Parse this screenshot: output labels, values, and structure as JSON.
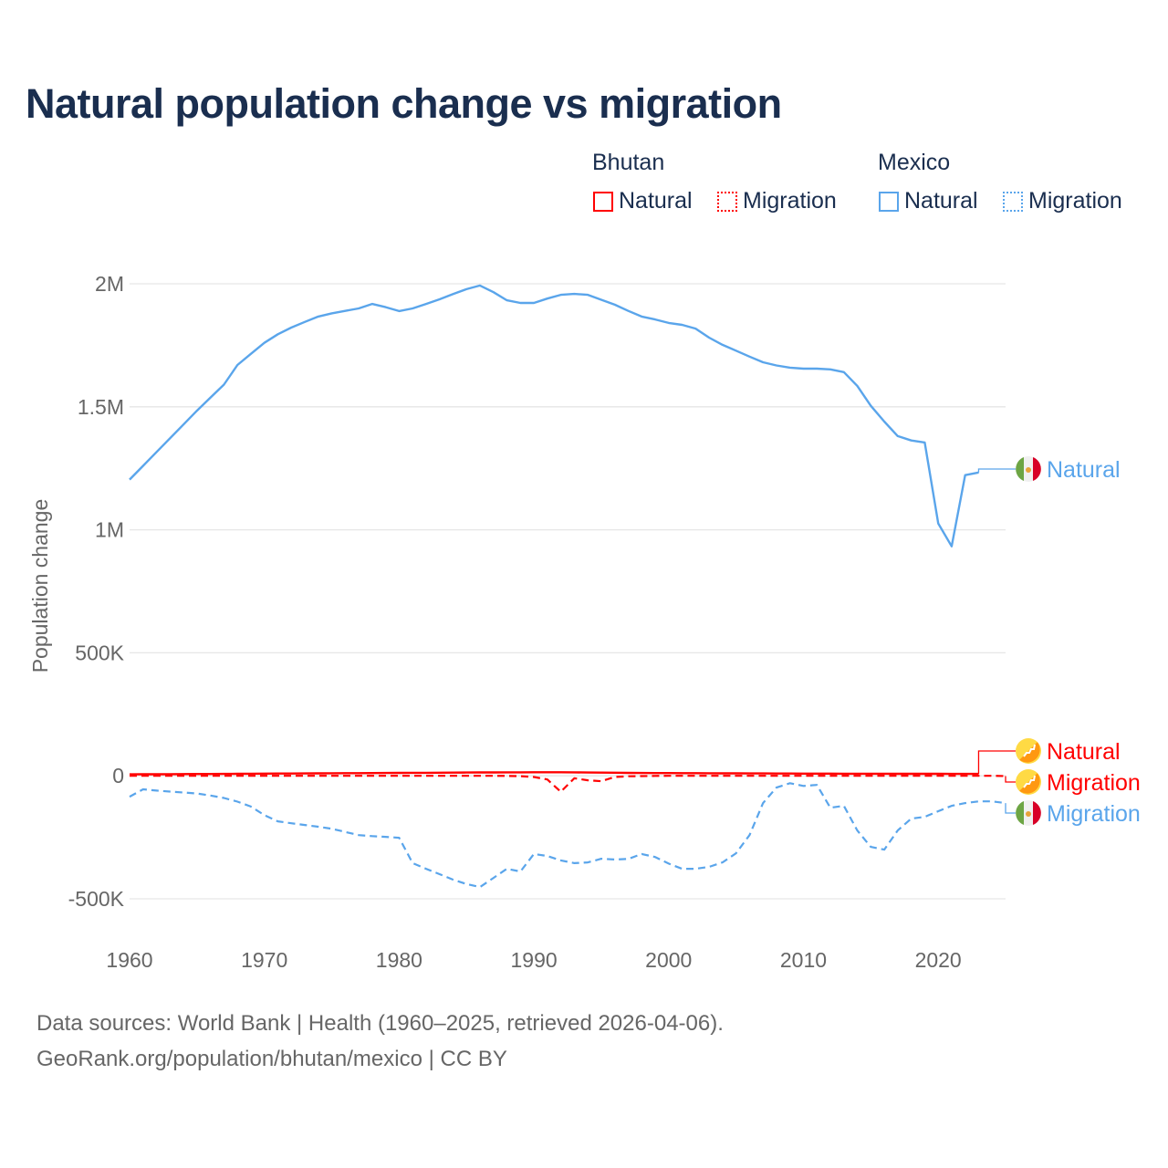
{
  "chart_data": {
    "type": "line",
    "title": "Natural population change vs migration",
    "ylabel": "Population change",
    "xlabel": "",
    "xlim": [
      1960,
      2025
    ],
    "ylim": [
      -500000,
      2000000
    ],
    "x_ticks": [
      "1960",
      "1970",
      "1980",
      "1990",
      "2000",
      "2010",
      "2020"
    ],
    "y_ticks": [
      {
        "v": 2000000,
        "l": "2M"
      },
      {
        "v": 1500000,
        "l": "1.5M"
      },
      {
        "v": 1000000,
        "l": "1M"
      },
      {
        "v": 500000,
        "l": "500K"
      },
      {
        "v": 0,
        "l": "0"
      },
      {
        "v": -500000,
        "l": "-500K"
      }
    ],
    "grid": true,
    "legend_groups": [
      {
        "country": "Bhutan",
        "color": "#ff0000"
      },
      {
        "country": "Mexico",
        "color": "#5aa5eb"
      }
    ],
    "legend_items": [
      "Natural",
      "Migration"
    ],
    "series": [
      {
        "name": "Mexico Natural",
        "country": "Mexico",
        "kind": "Natural",
        "color": "#5aa5eb",
        "dash": false,
        "start": 1960,
        "values": [
          1204000,
          1260000,
          1316000,
          1372000,
          1428000,
          1484000,
          1537000,
          1590000,
          1670000,
          1715000,
          1760000,
          1795000,
          1822000,
          1845000,
          1867000,
          1880000,
          1890000,
          1900000,
          1918000,
          1905000,
          1889000,
          1900000,
          1918000,
          1937000,
          1958000,
          1978000,
          1993000,
          1966000,
          1933000,
          1922000,
          1922000,
          1940000,
          1955000,
          1959000,
          1955000,
          1935000,
          1915000,
          1890000,
          1867000,
          1855000,
          1841000,
          1833000,
          1818000,
          1781000,
          1752000,
          1728000,
          1704000,
          1681000,
          1668000,
          1659000,
          1655000,
          1655000,
          1652000,
          1641000,
          1585000,
          1504000,
          1440000,
          1381000,
          1363000,
          1355000,
          1026000,
          933000,
          1222000,
          1233000
        ]
      },
      {
        "name": "Mexico Migration",
        "country": "Mexico",
        "kind": "Migration",
        "color": "#5aa5eb",
        "dash": true,
        "start": 1960,
        "values": [
          -85000,
          -55000,
          -60000,
          -64000,
          -68000,
          -72000,
          -80000,
          -90000,
          -105000,
          -125000,
          -160000,
          -185000,
          -193000,
          -200000,
          -207000,
          -215000,
          -228000,
          -241000,
          -245000,
          -248000,
          -252000,
          -355000,
          -378000,
          -400000,
          -422000,
          -440000,
          -452000,
          -415000,
          -378000,
          -389000,
          -318000,
          -326000,
          -344000,
          -355000,
          -352000,
          -337000,
          -340000,
          -338000,
          -318000,
          -330000,
          -357000,
          -378000,
          -378000,
          -370000,
          -352000,
          -315000,
          -241000,
          -111000,
          -48000,
          -30000,
          -41000,
          -37000,
          -130000,
          -122000,
          -222000,
          -289000,
          -300000,
          -222000,
          -174000,
          -167000,
          -144000,
          -122000,
          -111000,
          -104000,
          -104000,
          -111000
        ]
      },
      {
        "name": "Bhutan Natural",
        "country": "Bhutan",
        "kind": "Natural",
        "color": "#ff0000",
        "dash": false,
        "start": 1960,
        "values": [
          6000,
          6200,
          6400,
          6700,
          7000,
          7300,
          7600,
          7900,
          8200,
          8500,
          8800,
          9100,
          9400,
          9700,
          10000,
          10300,
          10600,
          10900,
          11200,
          11500,
          11800,
          12100,
          12400,
          12700,
          13000,
          13300,
          13600,
          13800,
          14000,
          14200,
          14300,
          14400,
          14300,
          14000,
          13500,
          13000,
          12500,
          12000,
          11600,
          11300,
          11000,
          10800,
          10600,
          10400,
          10200,
          10000,
          9800,
          9600,
          9400,
          9200,
          9000,
          8900,
          8800,
          8700,
          8600,
          8500,
          8400,
          8300,
          8200,
          8100,
          8000,
          7900,
          7800,
          7700
        ]
      },
      {
        "name": "Bhutan Migration",
        "country": "Bhutan",
        "kind": "Migration",
        "color": "#ff0000",
        "dash": true,
        "start": 1960,
        "values": [
          0,
          0,
          0,
          0,
          0,
          0,
          0,
          0,
          0,
          0,
          0,
          0,
          0,
          0,
          0,
          0,
          0,
          0,
          0,
          0,
          0,
          0,
          0,
          0,
          0,
          0,
          0,
          0,
          -500,
          -1500,
          -5000,
          -15000,
          -65000,
          -10000,
          -18000,
          -22000,
          -5000,
          -2000,
          -1000,
          -500,
          0,
          0,
          0,
          0,
          0,
          0,
          0,
          0,
          0,
          0,
          0,
          0,
          0,
          0,
          0,
          0,
          0,
          0,
          0,
          0,
          0,
          0,
          0,
          0,
          0,
          -1000
        ]
      }
    ],
    "end_labels": [
      {
        "text": "Natural",
        "series": 0,
        "flag": "mexico"
      },
      {
        "text": "Natural",
        "series": 2,
        "flag": "bhutan"
      },
      {
        "text": "Migration",
        "series": 3,
        "flag": "bhutan"
      },
      {
        "text": "Migration",
        "series": 1,
        "flag": "mexico"
      }
    ]
  },
  "legend": {
    "bhutan": "Bhutan",
    "mexico": "Mexico",
    "natural": "Natural",
    "migration": "Migration"
  },
  "footer": {
    "line1": "Data sources: World Bank | Health (1960–2025, retrieved 2026-04-06).",
    "line2": "GeoRank.org/population/bhutan/mexico | CC BY"
  }
}
